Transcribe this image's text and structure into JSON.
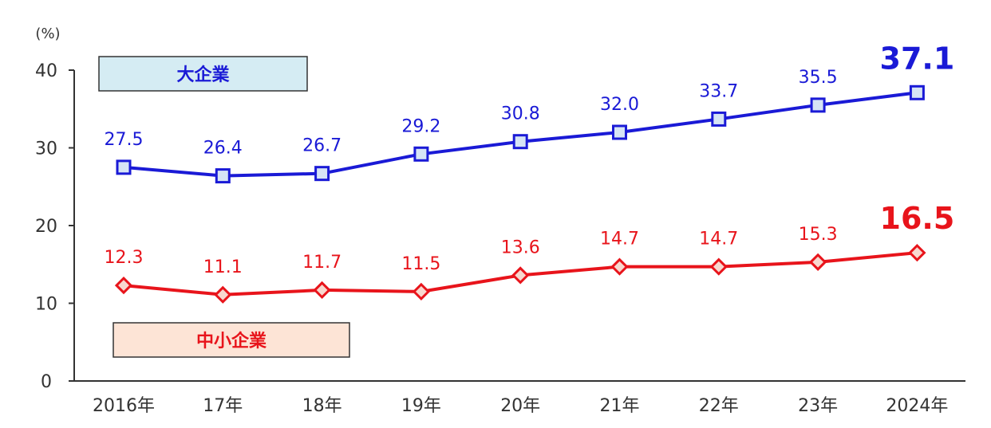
{
  "chart_data": {
    "type": "line",
    "unit_label": "(%)",
    "categories": [
      "2016年",
      "17年",
      "18年",
      "19年",
      "20年",
      "21年",
      "22年",
      "23年",
      "2024年"
    ],
    "ylim": [
      0,
      40
    ],
    "yticks": [
      0,
      10,
      20,
      30,
      40
    ],
    "grid": false,
    "series": [
      {
        "name": "大企業",
        "values": [
          27.5,
          26.4,
          26.7,
          29.2,
          30.8,
          32.0,
          33.7,
          35.5,
          37.1
        ],
        "labels": [
          "27.5",
          "26.4",
          "26.7",
          "29.2",
          "30.8",
          "32.0",
          "33.7",
          "35.5",
          "37.1"
        ],
        "color": "#1a1ad6",
        "marker": "square",
        "marker_fill": "#d6e4f5",
        "legend_fill": "#d5ecf3"
      },
      {
        "name": "中小企業",
        "values": [
          12.3,
          11.1,
          11.7,
          11.5,
          13.6,
          14.7,
          14.7,
          15.3,
          16.5
        ],
        "labels": [
          "12.3",
          "11.1",
          "11.7",
          "11.5",
          "13.6",
          "14.7",
          "14.7",
          "15.3",
          "16.5"
        ],
        "color": "#e8141b",
        "marker": "diamond",
        "marker_fill": "#f8d8cf",
        "legend_fill": "#fde4d6"
      }
    ]
  }
}
